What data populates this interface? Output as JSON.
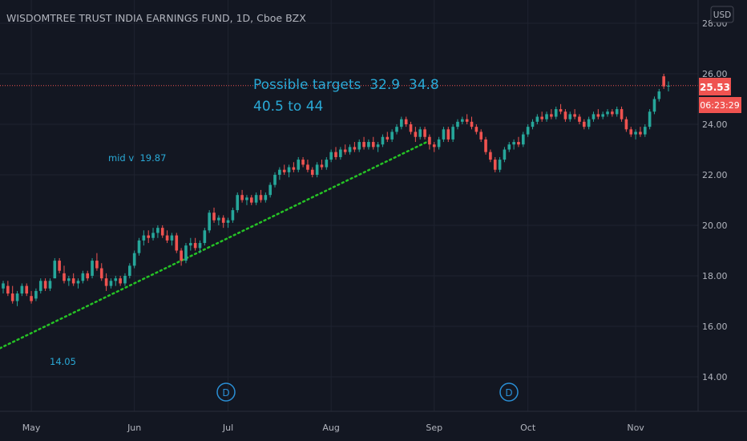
{
  "header": {
    "title": "WISDOMTREE TRUST INDIA EARNINGS FUND, 1D, Cboe BZX",
    "currency_button": "USD"
  },
  "price_axis": {
    "ticks": [
      "14.00",
      "16.00",
      "18.00",
      "20.00",
      "22.00",
      "24.00",
      "26.00",
      "28.00"
    ]
  },
  "time_axis": {
    "labels": [
      "May",
      "Jun",
      "Jul",
      "Aug",
      "Sep",
      "Oct",
      "Nov"
    ]
  },
  "annotations": {
    "targets_line1": "Possible targets  32.9  34.8",
    "targets_line2": "40.5 to 44",
    "mid_label": "mid v  19.87",
    "low_label": "14.05",
    "dividend_marker": "D"
  },
  "last_price": {
    "value": "25.53",
    "countdown": "06:23:29"
  },
  "colors": {
    "background": "#131722",
    "grid": "#1f2330",
    "up": "#26a69a",
    "down": "#ef5350",
    "trendline": "#25c225",
    "annotation": "#2aa9d6",
    "axis_text": "#b2b5be",
    "price_line": "#ef5350"
  },
  "chart_data": {
    "type": "candlestick",
    "title": "WISDOMTREE TRUST INDIA EARNINGS FUND, 1D, Cboe BZX",
    "ylim": [
      13.0,
      28.5
    ],
    "x_labels": [
      "May",
      "Jun",
      "Jul",
      "Aug",
      "Sep",
      "Oct",
      "Nov"
    ],
    "last_price": 25.53,
    "series": [
      {
        "t": "Apr 23",
        "o": 17.5,
        "h": 17.8,
        "l": 17.3,
        "c": 17.7
      },
      {
        "t": "Apr 24",
        "o": 17.6,
        "h": 17.8,
        "l": 17.2,
        "c": 17.3
      },
      {
        "t": "Apr 25",
        "o": 17.3,
        "h": 17.6,
        "l": 16.9,
        "c": 17.0
      },
      {
        "t": "Apr 26",
        "o": 17.0,
        "h": 17.4,
        "l": 16.8,
        "c": 17.3
      },
      {
        "t": "Apr 29",
        "o": 17.3,
        "h": 17.7,
        "l": 17.2,
        "c": 17.6
      },
      {
        "t": "Apr 30",
        "o": 17.6,
        "h": 17.7,
        "l": 17.2,
        "c": 17.3
      },
      {
        "t": "May 01",
        "o": 17.2,
        "h": 17.4,
        "l": 16.9,
        "c": 17.0
      },
      {
        "t": "May 02",
        "o": 17.1,
        "h": 17.5,
        "l": 17.0,
        "c": 17.4
      },
      {
        "t": "May 03",
        "o": 17.4,
        "h": 17.9,
        "l": 17.3,
        "c": 17.8
      },
      {
        "t": "May 06",
        "o": 17.8,
        "h": 17.9,
        "l": 17.4,
        "c": 17.5
      },
      {
        "t": "May 07",
        "o": 17.5,
        "h": 17.9,
        "l": 17.4,
        "c": 17.8
      },
      {
        "t": "May 08",
        "o": 17.9,
        "h": 18.7,
        "l": 17.9,
        "c": 18.6
      },
      {
        "t": "May 09",
        "o": 18.6,
        "h": 18.7,
        "l": 18.1,
        "c": 18.2
      },
      {
        "t": "May 10",
        "o": 18.1,
        "h": 18.4,
        "l": 17.7,
        "c": 17.8
      },
      {
        "t": "May 13",
        "o": 17.8,
        "h": 18.0,
        "l": 17.6,
        "c": 17.9
      },
      {
        "t": "May 14",
        "o": 17.9,
        "h": 18.1,
        "l": 17.6,
        "c": 17.7
      },
      {
        "t": "May 15",
        "o": 17.7,
        "h": 17.9,
        "l": 17.5,
        "c": 17.8
      },
      {
        "t": "May 16",
        "o": 17.8,
        "h": 18.2,
        "l": 17.7,
        "c": 18.1
      },
      {
        "t": "May 17",
        "o": 18.1,
        "h": 18.2,
        "l": 17.8,
        "c": 17.9
      },
      {
        "t": "May 20",
        "o": 18.0,
        "h": 18.7,
        "l": 17.9,
        "c": 18.6
      },
      {
        "t": "May 21",
        "o": 18.6,
        "h": 18.9,
        "l": 18.2,
        "c": 18.3
      },
      {
        "t": "May 22",
        "o": 18.3,
        "h": 18.5,
        "l": 17.8,
        "c": 17.9
      },
      {
        "t": "May 23",
        "o": 17.9,
        "h": 18.1,
        "l": 17.4,
        "c": 17.6
      },
      {
        "t": "May 24",
        "o": 17.6,
        "h": 17.9,
        "l": 17.5,
        "c": 17.8
      },
      {
        "t": "May 28",
        "o": 17.8,
        "h": 18.0,
        "l": 17.6,
        "c": 17.9
      },
      {
        "t": "May 29",
        "o": 17.9,
        "h": 18.0,
        "l": 17.6,
        "c": 17.7
      },
      {
        "t": "May 30",
        "o": 17.7,
        "h": 18.1,
        "l": 17.6,
        "c": 18.0
      },
      {
        "t": "May 31",
        "o": 18.0,
        "h": 18.5,
        "l": 17.9,
        "c": 18.4
      },
      {
        "t": "Jun 03",
        "o": 18.4,
        "h": 19.0,
        "l": 18.3,
        "c": 18.9
      },
      {
        "t": "Jun 04",
        "o": 18.9,
        "h": 19.5,
        "l": 18.8,
        "c": 19.4
      },
      {
        "t": "Jun 05",
        "o": 19.4,
        "h": 19.8,
        "l": 19.2,
        "c": 19.6
      },
      {
        "t": "Jun 06",
        "o": 19.6,
        "h": 19.8,
        "l": 19.3,
        "c": 19.5
      },
      {
        "t": "Jun 07",
        "o": 19.5,
        "h": 19.9,
        "l": 19.4,
        "c": 19.7
      },
      {
        "t": "Jun 10",
        "o": 19.7,
        "h": 20.0,
        "l": 19.5,
        "c": 19.9
      },
      {
        "t": "Jun 11",
        "o": 19.9,
        "h": 20.0,
        "l": 19.5,
        "c": 19.6
      },
      {
        "t": "Jun 12",
        "o": 19.6,
        "h": 19.8,
        "l": 19.3,
        "c": 19.4
      },
      {
        "t": "Jun 13",
        "o": 19.4,
        "h": 19.7,
        "l": 19.2,
        "c": 19.6
      },
      {
        "t": "Jun 14",
        "o": 19.6,
        "h": 19.7,
        "l": 18.9,
        "c": 19.0
      },
      {
        "t": "Jun 17",
        "o": 19.0,
        "h": 19.1,
        "l": 18.4,
        "c": 18.6
      },
      {
        "t": "Jun 18",
        "o": 18.6,
        "h": 19.3,
        "l": 18.5,
        "c": 19.2
      },
      {
        "t": "Jun 19",
        "o": 19.2,
        "h": 19.5,
        "l": 19.0,
        "c": 19.3
      },
      {
        "t": "Jun 20",
        "o": 19.3,
        "h": 19.5,
        "l": 19.0,
        "c": 19.1
      },
      {
        "t": "Jun 21",
        "o": 19.1,
        "h": 19.4,
        "l": 18.9,
        "c": 19.3
      },
      {
        "t": "Jun 24",
        "o": 19.3,
        "h": 19.9,
        "l": 19.2,
        "c": 19.8
      },
      {
        "t": "Jun 25",
        "o": 19.8,
        "h": 20.6,
        "l": 19.7,
        "c": 20.5
      },
      {
        "t": "Jun 26",
        "o": 20.5,
        "h": 20.7,
        "l": 20.1,
        "c": 20.2
      },
      {
        "t": "Jun 27",
        "o": 20.2,
        "h": 20.4,
        "l": 20.0,
        "c": 20.3
      },
      {
        "t": "Jun 28",
        "o": 20.3,
        "h": 20.4,
        "l": 19.9,
        "c": 20.1
      },
      {
        "t": "Jul 01",
        "o": 20.1,
        "h": 20.3,
        "l": 19.9,
        "c": 20.2
      },
      {
        "t": "Jul 02",
        "o": 20.2,
        "h": 20.7,
        "l": 20.1,
        "c": 20.6
      },
      {
        "t": "Jul 03",
        "o": 20.6,
        "h": 21.3,
        "l": 20.5,
        "c": 21.2
      },
      {
        "t": "Jul 05",
        "o": 21.2,
        "h": 21.4,
        "l": 20.9,
        "c": 21.0
      },
      {
        "t": "Jul 08",
        "o": 21.0,
        "h": 21.2,
        "l": 20.8,
        "c": 21.1
      },
      {
        "t": "Jul 09",
        "o": 21.1,
        "h": 21.2,
        "l": 20.8,
        "c": 20.9
      },
      {
        "t": "Jul 10",
        "o": 20.9,
        "h": 21.3,
        "l": 20.8,
        "c": 21.2
      },
      {
        "t": "Jul 11",
        "o": 21.2,
        "h": 21.4,
        "l": 20.9,
        "c": 21.0
      },
      {
        "t": "Jul 12",
        "o": 21.0,
        "h": 21.3,
        "l": 20.9,
        "c": 21.2
      },
      {
        "t": "Jul 15",
        "o": 21.2,
        "h": 21.7,
        "l": 21.1,
        "c": 21.6
      },
      {
        "t": "Jul 16",
        "o": 21.6,
        "h": 22.1,
        "l": 21.5,
        "c": 22.0
      },
      {
        "t": "Jul 17",
        "o": 22.0,
        "h": 22.3,
        "l": 21.8,
        "c": 22.2
      },
      {
        "t": "Jul 18",
        "o": 22.2,
        "h": 22.4,
        "l": 22.0,
        "c": 22.1
      },
      {
        "t": "Jul 19",
        "o": 22.1,
        "h": 22.4,
        "l": 21.9,
        "c": 22.3
      },
      {
        "t": "Jul 22",
        "o": 22.3,
        "h": 22.5,
        "l": 22.1,
        "c": 22.2
      },
      {
        "t": "Jul 23",
        "o": 22.2,
        "h": 22.7,
        "l": 22.1,
        "c": 22.6
      },
      {
        "t": "Jul 24",
        "o": 22.6,
        "h": 22.7,
        "l": 22.3,
        "c": 22.4
      },
      {
        "t": "Jul 25",
        "o": 22.4,
        "h": 22.6,
        "l": 22.1,
        "c": 22.2
      },
      {
        "t": "Jul 26",
        "o": 22.2,
        "h": 22.3,
        "l": 21.9,
        "c": 22.0
      },
      {
        "t": "Jul 29",
        "o": 22.0,
        "h": 22.5,
        "l": 21.9,
        "c": 22.4
      },
      {
        "t": "Jul 30",
        "o": 22.4,
        "h": 22.6,
        "l": 22.2,
        "c": 22.3
      },
      {
        "t": "Jul 31",
        "o": 22.3,
        "h": 22.7,
        "l": 22.2,
        "c": 22.6
      },
      {
        "t": "Aug 01",
        "o": 22.6,
        "h": 23.0,
        "l": 22.5,
        "c": 22.9
      },
      {
        "t": "Aug 02",
        "o": 22.9,
        "h": 23.1,
        "l": 22.6,
        "c": 22.7
      },
      {
        "t": "Aug 05",
        "o": 22.7,
        "h": 23.1,
        "l": 22.6,
        "c": 23.0
      },
      {
        "t": "Aug 06",
        "o": 23.0,
        "h": 23.2,
        "l": 22.8,
        "c": 22.9
      },
      {
        "t": "Aug 07",
        "o": 22.9,
        "h": 23.2,
        "l": 22.8,
        "c": 23.1
      },
      {
        "t": "Aug 08",
        "o": 23.1,
        "h": 23.3,
        "l": 22.9,
        "c": 23.0
      },
      {
        "t": "Aug 09",
        "o": 23.0,
        "h": 23.4,
        "l": 22.9,
        "c": 23.3
      },
      {
        "t": "Aug 12",
        "o": 23.3,
        "h": 23.5,
        "l": 23.0,
        "c": 23.1
      },
      {
        "t": "Aug 13",
        "o": 23.1,
        "h": 23.4,
        "l": 23.0,
        "c": 23.3
      },
      {
        "t": "Aug 14",
        "o": 23.3,
        "h": 23.5,
        "l": 23.0,
        "c": 23.1
      },
      {
        "t": "Aug 15",
        "o": 23.1,
        "h": 23.3,
        "l": 22.9,
        "c": 23.2
      },
      {
        "t": "Aug 16",
        "o": 23.2,
        "h": 23.6,
        "l": 23.1,
        "c": 23.5
      },
      {
        "t": "Aug 19",
        "o": 23.5,
        "h": 23.7,
        "l": 23.3,
        "c": 23.4
      },
      {
        "t": "Aug 20",
        "o": 23.4,
        "h": 23.8,
        "l": 23.3,
        "c": 23.7
      },
      {
        "t": "Aug 21",
        "o": 23.7,
        "h": 24.0,
        "l": 23.6,
        "c": 23.9
      },
      {
        "t": "Aug 22",
        "o": 23.9,
        "h": 24.3,
        "l": 23.8,
        "c": 24.2
      },
      {
        "t": "Aug 23",
        "o": 24.2,
        "h": 24.3,
        "l": 23.9,
        "c": 24.0
      },
      {
        "t": "Aug 26",
        "o": 24.0,
        "h": 24.1,
        "l": 23.6,
        "c": 23.7
      },
      {
        "t": "Aug 27",
        "o": 23.7,
        "h": 23.9,
        "l": 23.3,
        "c": 23.5
      },
      {
        "t": "Aug 28",
        "o": 23.5,
        "h": 23.9,
        "l": 23.4,
        "c": 23.8
      },
      {
        "t": "Aug 29",
        "o": 23.8,
        "h": 23.9,
        "l": 23.4,
        "c": 23.5
      },
      {
        "t": "Aug 30",
        "o": 23.5,
        "h": 23.6,
        "l": 23.0,
        "c": 23.2
      },
      {
        "t": "Sep 03",
        "o": 23.2,
        "h": 23.3,
        "l": 22.9,
        "c": 23.1
      },
      {
        "t": "Sep 04",
        "o": 23.1,
        "h": 23.5,
        "l": 23.0,
        "c": 23.4
      },
      {
        "t": "Sep 05",
        "o": 23.4,
        "h": 23.9,
        "l": 23.3,
        "c": 23.8
      },
      {
        "t": "Sep 06",
        "o": 23.8,
        "h": 23.9,
        "l": 23.3,
        "c": 23.4
      },
      {
        "t": "Sep 09",
        "o": 23.4,
        "h": 24.0,
        "l": 23.3,
        "c": 23.9
      },
      {
        "t": "Sep 10",
        "o": 23.9,
        "h": 24.2,
        "l": 23.8,
        "c": 24.1
      },
      {
        "t": "Sep 11",
        "o": 24.1,
        "h": 24.3,
        "l": 24.0,
        "c": 24.2
      },
      {
        "t": "Sep 12",
        "o": 24.2,
        "h": 24.4,
        "l": 24.0,
        "c": 24.1
      },
      {
        "t": "Sep 13",
        "o": 24.1,
        "h": 24.3,
        "l": 23.8,
        "c": 23.9
      },
      {
        "t": "Sep 16",
        "o": 23.9,
        "h": 24.0,
        "l": 23.6,
        "c": 23.7
      },
      {
        "t": "Sep 17",
        "o": 23.7,
        "h": 23.8,
        "l": 23.3,
        "c": 23.4
      },
      {
        "t": "Sep 18",
        "o": 23.4,
        "h": 23.5,
        "l": 22.8,
        "c": 22.9
      },
      {
        "t": "Sep 19",
        "o": 22.9,
        "h": 23.0,
        "l": 22.5,
        "c": 22.6
      },
      {
        "t": "Sep 20",
        "o": 22.6,
        "h": 22.7,
        "l": 22.1,
        "c": 22.2
      },
      {
        "t": "Sep 23",
        "o": 22.2,
        "h": 22.7,
        "l": 22.1,
        "c": 22.6
      },
      {
        "t": "Sep 24",
        "o": 22.6,
        "h": 23.1,
        "l": 22.5,
        "c": 23.0
      },
      {
        "t": "Sep 25",
        "o": 23.0,
        "h": 23.3,
        "l": 22.9,
        "c": 23.2
      },
      {
        "t": "Sep 26",
        "o": 23.2,
        "h": 23.4,
        "l": 23.0,
        "c": 23.3
      },
      {
        "t": "Sep 27",
        "o": 23.3,
        "h": 23.5,
        "l": 23.1,
        "c": 23.2
      },
      {
        "t": "Sep 30",
        "o": 23.2,
        "h": 23.7,
        "l": 23.1,
        "c": 23.6
      },
      {
        "t": "Oct 01",
        "o": 23.6,
        "h": 24.0,
        "l": 23.5,
        "c": 23.9
      },
      {
        "t": "Oct 02",
        "o": 23.9,
        "h": 24.2,
        "l": 23.8,
        "c": 24.1
      },
      {
        "t": "Oct 03",
        "o": 24.1,
        "h": 24.4,
        "l": 24.0,
        "c": 24.3
      },
      {
        "t": "Oct 04",
        "o": 24.3,
        "h": 24.5,
        "l": 24.1,
        "c": 24.2
      },
      {
        "t": "Oct 07",
        "o": 24.2,
        "h": 24.5,
        "l": 24.1,
        "c": 24.4
      },
      {
        "t": "Oct 08",
        "o": 24.4,
        "h": 24.6,
        "l": 24.2,
        "c": 24.3
      },
      {
        "t": "Oct 09",
        "o": 24.3,
        "h": 24.7,
        "l": 24.2,
        "c": 24.6
      },
      {
        "t": "Oct 10",
        "o": 24.6,
        "h": 24.8,
        "l": 24.4,
        "c": 24.5
      },
      {
        "t": "Oct 11",
        "o": 24.5,
        "h": 24.6,
        "l": 24.1,
        "c": 24.2
      },
      {
        "t": "Oct 14",
        "o": 24.2,
        "h": 24.5,
        "l": 24.1,
        "c": 24.4
      },
      {
        "t": "Oct 15",
        "o": 24.4,
        "h": 24.6,
        "l": 24.2,
        "c": 24.3
      },
      {
        "t": "Oct 16",
        "o": 24.3,
        "h": 24.4,
        "l": 24.0,
        "c": 24.1
      },
      {
        "t": "Oct 17",
        "o": 24.1,
        "h": 24.2,
        "l": 23.8,
        "c": 23.9
      },
      {
        "t": "Oct 18",
        "o": 23.9,
        "h": 24.3,
        "l": 23.8,
        "c": 24.2
      },
      {
        "t": "Oct 21",
        "o": 24.2,
        "h": 24.5,
        "l": 24.1,
        "c": 24.4
      },
      {
        "t": "Oct 22",
        "o": 24.4,
        "h": 24.6,
        "l": 24.2,
        "c": 24.3
      },
      {
        "t": "Oct 23",
        "o": 24.3,
        "h": 24.5,
        "l": 24.2,
        "c": 24.4
      },
      {
        "t": "Oct 24",
        "o": 24.4,
        "h": 24.6,
        "l": 24.3,
        "c": 24.5
      },
      {
        "t": "Oct 25",
        "o": 24.5,
        "h": 24.6,
        "l": 24.3,
        "c": 24.4
      },
      {
        "t": "Oct 28",
        "o": 24.4,
        "h": 24.7,
        "l": 24.3,
        "c": 24.6
      },
      {
        "t": "Oct 29",
        "o": 24.6,
        "h": 24.7,
        "l": 24.1,
        "c": 24.2
      },
      {
        "t": "Oct 30",
        "o": 24.2,
        "h": 24.3,
        "l": 23.7,
        "c": 23.8
      },
      {
        "t": "Oct 31",
        "o": 23.8,
        "h": 23.9,
        "l": 23.5,
        "c": 23.6
      },
      {
        "t": "Nov 01",
        "o": 23.6,
        "h": 23.8,
        "l": 23.4,
        "c": 23.7
      },
      {
        "t": "Nov 04",
        "o": 23.7,
        "h": 23.9,
        "l": 23.5,
        "c": 23.6
      },
      {
        "t": "Nov 05",
        "o": 23.6,
        "h": 24.0,
        "l": 23.5,
        "c": 23.9
      },
      {
        "t": "Nov 06",
        "o": 23.9,
        "h": 24.6,
        "l": 23.8,
        "c": 24.5
      },
      {
        "t": "Nov 07",
        "o": 24.5,
        "h": 25.1,
        "l": 24.4,
        "c": 25.0
      },
      {
        "t": "Nov 08",
        "o": 25.0,
        "h": 25.4,
        "l": 24.9,
        "c": 25.3
      },
      {
        "t": "Nov 11",
        "o": 25.9,
        "h": 26.0,
        "l": 25.4,
        "c": 25.5
      },
      {
        "t": "Nov 12",
        "o": 25.5,
        "h": 25.7,
        "l": 25.3,
        "c": 25.53
      }
    ],
    "trendline": {
      "from": {
        "t": "Apr 23",
        "v": 15.15
      },
      "to": {
        "t": "Aug 30",
        "v": 23.35
      },
      "style": "dotted"
    },
    "price_line": 25.53,
    "dividend_markers": [
      "Jun 27",
      "Sep 20"
    ]
  }
}
